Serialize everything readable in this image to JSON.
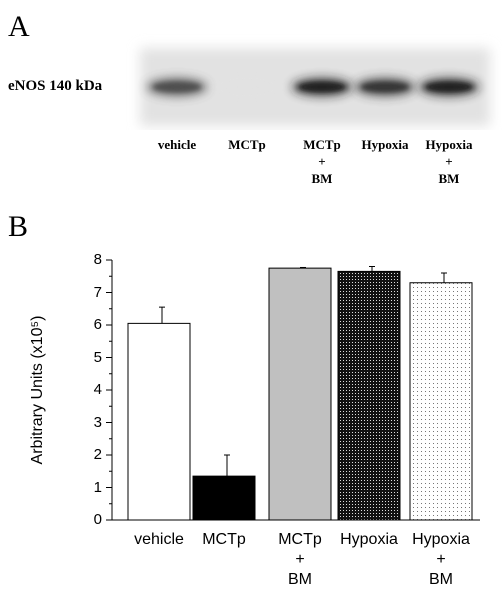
{
  "panel_a": {
    "label": "A",
    "blot_title": "eNOS 140 kDa",
    "lanes": [
      {
        "label": "vehicle",
        "intensity": 0.75
      },
      {
        "label": "MCTp",
        "intensity": 0.12
      },
      {
        "label": "MCTp\n+\nBM",
        "intensity": 0.95
      },
      {
        "label": "Hypoxia",
        "intensity": 0.85
      },
      {
        "label": "Hypoxia\n+\nBM",
        "intensity": 0.95
      }
    ]
  },
  "panel_b": {
    "label": "B"
  },
  "chart_data": {
    "type": "bar",
    "categories": [
      "vehicle",
      "MCTp",
      "MCTp\n+\nBM",
      "Hypoxia",
      "Hypoxia\n+\nBM"
    ],
    "values": [
      6.05,
      1.35,
      7.75,
      7.65,
      7.3
    ],
    "errors": [
      0.5,
      0.65,
      0.02,
      0.15,
      0.3
    ],
    "fills": [
      "white",
      "black",
      "gray",
      "dense-dots",
      "sparse-dots"
    ],
    "ylabel": "Arbitrary Units (x10⁵)",
    "ylim": [
      0,
      8
    ],
    "yticks": [
      "0",
      "1",
      "2",
      "3",
      "4",
      "5",
      "6",
      "7",
      "8"
    ]
  }
}
